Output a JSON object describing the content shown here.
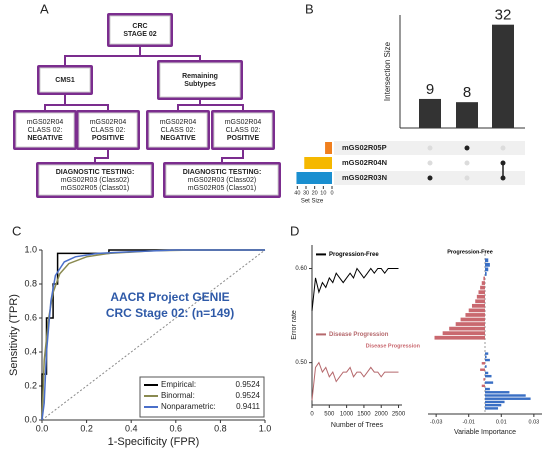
{
  "panel_labels": [
    "A",
    "B",
    "C",
    "D"
  ],
  "diagram": {
    "root": [
      "CRC",
      "STAGE 02"
    ],
    "branches": [
      {
        "label": [
          "CMS1"
        ],
        "leaves": [
          [
            "mGS02R04",
            "CLASS 02:",
            "NEGATIVE"
          ],
          [
            "mGS02R04",
            "CLASS 02:",
            "POSITIVE"
          ]
        ],
        "testing": [
          "DIAGNOSTIC TESTING:",
          "mGS02R03 (Class02)",
          "mGS02R05 (Class01)"
        ]
      },
      {
        "label": [
          "Remaining",
          "Subtypes"
        ],
        "leaves": [
          [
            "mGS02R04",
            "CLASS 02:",
            "NEGATIVE"
          ],
          [
            "mGS02R04",
            "CLASS 02:",
            "POSITIVE"
          ]
        ],
        "testing": [
          "DIAGNOSTIC TESTING:",
          "mGS02R03 (Class02)",
          "mGS02R05 (Class01)"
        ]
      }
    ]
  },
  "chart_data": [
    {
      "type": "upset",
      "ylabel": "Intersection Size",
      "values": [
        9,
        8,
        32
      ],
      "ylim": [
        0,
        35
      ],
      "color": "#333333",
      "sets": [
        {
          "name": "mGS02R05P",
          "color": "#f07f1e",
          "size": 8
        },
        {
          "name": "mGS02R04N",
          "color": "#f5b800",
          "size": 32
        },
        {
          "name": "mGS02R03N",
          "color": "#1a8fd0",
          "size": 41
        }
      ],
      "membership": [
        [
          2
        ],
        [
          0
        ],
        [
          1,
          2
        ]
      ],
      "xlabel": "Set Size",
      "xlim": [
        45,
        0
      ],
      "xticks": [
        40,
        30,
        20,
        10,
        0
      ]
    },
    {
      "type": "line",
      "xlabel": "1-Specificity (FPR)",
      "ylabel": "Sensitivity (TPR)",
      "xlim": [
        0,
        1
      ],
      "ylim": [
        0,
        1
      ],
      "xticks": [
        {
          "value": 0,
          "label": "0.0"
        },
        0.2,
        0.4,
        0.6,
        0.8,
        {
          "value": 1,
          "label": "1.0"
        }
      ],
      "yticks": [
        {
          "value": 0,
          "label": "0.0"
        },
        0.2,
        0.4,
        0.6,
        0.8,
        {
          "value": 1,
          "label": "1.0"
        }
      ],
      "annotations": [
        "AACR Project GENIE",
        "CRC Stage 02: (n=149)"
      ],
      "series": [
        {
          "name": "Empirical:",
          "auc": 0.9524,
          "color": "#000000",
          "x": [
            0,
            0,
            0.02,
            0.02,
            0.05,
            0.05,
            0.07,
            0.07,
            0.3,
            0.3,
            1
          ],
          "values": [
            0,
            0.27,
            0.27,
            0.6,
            0.6,
            0.8,
            0.8,
            0.98,
            0.98,
            1,
            1
          ]
        },
        {
          "name": "Binormal:",
          "auc": 0.9524,
          "color": "#8a8a50",
          "x": [
            0,
            0.01,
            0.03,
            0.05,
            0.08,
            0.12,
            0.2,
            0.3,
            0.5,
            0.7,
            1
          ],
          "values": [
            0,
            0.35,
            0.6,
            0.75,
            0.86,
            0.92,
            0.96,
            0.98,
            0.995,
            1,
            1
          ]
        },
        {
          "name": "Nonparametric:",
          "auc": 0.9411,
          "color": "#4a6fc9",
          "x": [
            0,
            0.01,
            0.02,
            0.04,
            0.06,
            0.1,
            0.15,
            0.25,
            0.4,
            0.6,
            1
          ],
          "values": [
            0,
            0.1,
            0.4,
            0.7,
            0.85,
            0.93,
            0.96,
            0.98,
            0.99,
            1,
            1
          ]
        }
      ]
    },
    {
      "type": "line",
      "xlabel": "Number of Trees",
      "ylabel": "Error rate",
      "xlim": [
        0,
        2600
      ],
      "ylim": [
        0.455,
        0.625
      ],
      "xticks": [
        0,
        500,
        1000,
        1500,
        2000,
        2500
      ],
      "yticks": [
        {
          "value": 0.5,
          "label": "0.50"
        },
        {
          "value": 0.6,
          "label": "0.60"
        }
      ],
      "series": [
        {
          "name": "Progression-Free",
          "color": "#000000",
          "x": [
            1,
            100,
            200,
            300,
            400,
            500,
            600,
            700,
            800,
            900,
            1000,
            1100,
            1200,
            1300,
            1400,
            1500,
            1600,
            1700,
            1800,
            1900,
            2000,
            2100,
            2200,
            2300,
            2400,
            2500
          ],
          "values": [
            0.555,
            0.59,
            0.575,
            0.585,
            0.58,
            0.59,
            0.585,
            0.595,
            0.59,
            0.585,
            0.59,
            0.595,
            0.59,
            0.6,
            0.595,
            0.59,
            0.595,
            0.6,
            0.595,
            0.6,
            0.6,
            0.595,
            0.6,
            0.6,
            0.6,
            0.6
          ]
        },
        {
          "name": "Disease Progression",
          "color": "#b5686c",
          "x": [
            1,
            100,
            200,
            300,
            400,
            500,
            600,
            700,
            800,
            900,
            1000,
            1100,
            1200,
            1300,
            1400,
            1500,
            1600,
            1700,
            1800,
            1900,
            2000,
            2100,
            2200,
            2300,
            2400,
            2500
          ],
          "values": [
            0.46,
            0.495,
            0.5,
            0.49,
            0.495,
            0.485,
            0.49,
            0.48,
            0.485,
            0.49,
            0.49,
            0.495,
            0.485,
            0.49,
            0.49,
            0.485,
            0.49,
            0.495,
            0.49,
            0.49,
            0.485,
            0.49,
            0.49,
            0.49,
            0.49,
            0.49
          ]
        }
      ]
    },
    {
      "type": "importance",
      "xlabel": "Variable Importance",
      "xlim": [
        -0.035,
        0.035
      ],
      "xticks": [
        -0.03,
        -0.01,
        0.01,
        0.03
      ],
      "positive_color": "#3a6fc4",
      "negative_color": "#c9686f",
      "groups": [
        {
          "title": "Progression-Free",
          "values": [
            0.002,
            0.003,
            0.002,
            0.001,
            -0.001,
            -0.002,
            -0.003,
            -0.004,
            -0.005,
            -0.006,
            -0.008,
            -0.01,
            -0.012,
            -0.015,
            -0.018,
            -0.022,
            -0.026,
            -0.031
          ]
        },
        {
          "title": "Disease Progression",
          "values": [
            0.002,
            0.001,
            0.003,
            -0.002,
            0.001,
            -0.003,
            0.002,
            0.004,
            -0.001,
            0.005,
            -0.002,
            0.003,
            0.015,
            0.025,
            0.028,
            0.012,
            0.01,
            0.008
          ]
        }
      ]
    }
  ]
}
